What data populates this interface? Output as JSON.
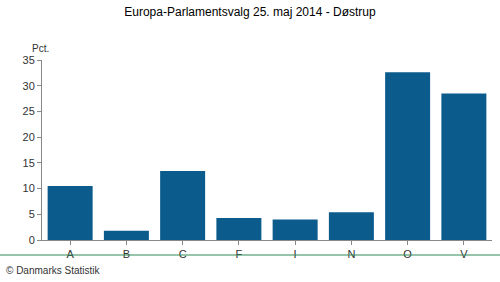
{
  "chart_data": {
    "type": "bar",
    "title": "Europa-Parlamentsvalg 25. maj 2014 - Døstrup",
    "ylabel": "Pct.",
    "source": "© Danmarks Statistik",
    "categories": [
      "A",
      "B",
      "C",
      "F",
      "I",
      "N",
      "O",
      "V"
    ],
    "values": [
      10.5,
      1.8,
      13.4,
      4.3,
      4.0,
      5.4,
      32.6,
      28.5
    ],
    "color": "#0b5b8d",
    "ylim": [
      0,
      35
    ],
    "yticks": [
      0,
      5,
      10,
      15,
      20,
      25,
      30,
      35
    ],
    "grid": false
  }
}
